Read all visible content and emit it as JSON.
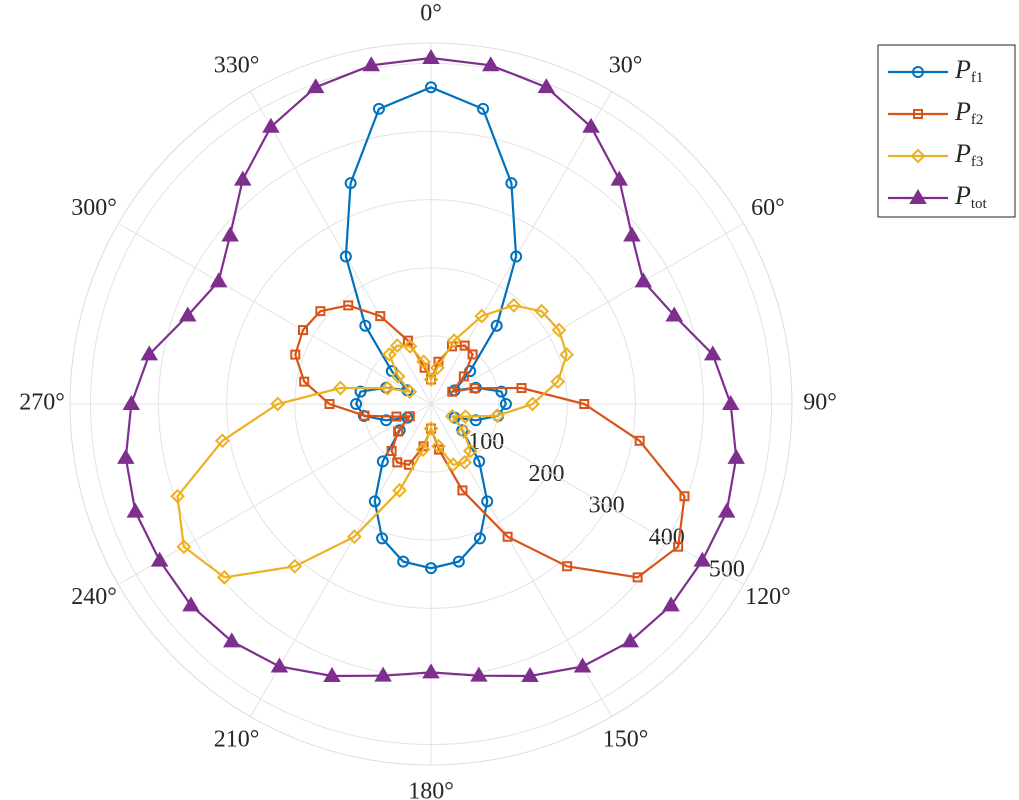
{
  "chart_data": {
    "type": "polar",
    "theta": [
      0,
      10,
      20,
      30,
      40,
      50,
      60,
      70,
      80,
      90,
      100,
      110,
      120,
      130,
      140,
      150,
      160,
      170,
      180,
      190,
      200,
      210,
      220,
      230,
      240,
      250,
      260,
      270,
      280,
      290,
      300,
      310,
      320,
      330,
      340,
      350
    ],
    "thetaticks": [
      {
        "value": 0,
        "label": "0°"
      },
      {
        "value": 30,
        "label": "30°"
      },
      {
        "value": 60,
        "label": "60°"
      },
      {
        "value": 90,
        "label": "90°"
      },
      {
        "value": 120,
        "label": "120°"
      },
      {
        "value": 150,
        "label": "150°"
      },
      {
        "value": 180,
        "label": "180°"
      },
      {
        "value": 210,
        "label": "210°"
      },
      {
        "value": 240,
        "label": "240°"
      },
      {
        "value": 270,
        "label": "270°"
      },
      {
        "value": 300,
        "label": "300°"
      },
      {
        "value": 330,
        "label": "330°"
      }
    ],
    "rlim": [
      0,
      530
    ],
    "rticks": [
      100,
      200,
      300,
      400,
      500
    ],
    "grid": true,
    "legend": "outside-upper-right",
    "series": [
      {
        "name": "Pf1",
        "color": "#0072BD",
        "marker": "circle",
        "values": [
          465,
          440,
          345,
          250,
          150,
          75,
          40,
          70,
          105,
          110,
          100,
          70,
          40,
          60,
          110,
          165,
          210,
          235,
          241,
          235,
          210,
          165,
          110,
          60,
          40,
          70,
          100,
          110,
          105,
          70,
          40,
          75,
          150,
          250,
          345,
          440
        ]
      },
      {
        "name": "Pf2",
        "color": "#D95319",
        "marker": "square",
        "values": [
          36,
          63,
          90,
          99,
          95,
          63,
          36,
          68,
          135,
          225,
          311,
          396,
          419,
          396,
          311,
          225,
          135,
          68,
          36,
          63,
          95,
          99,
          90,
          63,
          36,
          54,
          99,
          149,
          189,
          212,
          217,
          212,
          189,
          149,
          99,
          54
        ]
      },
      {
        "name": "Pf3",
        "color": "#EDB120",
        "marker": "diamond",
        "values": [
          36,
          54,
          99,
          149,
          189,
          212,
          217,
          212,
          189,
          149,
          99,
          54,
          36,
          63,
          90,
          99,
          95,
          63,
          36,
          68,
          135,
          225,
          311,
          396,
          419,
          396,
          311,
          225,
          135,
          68,
          36,
          63,
          95,
          99,
          90,
          63
        ]
      },
      {
        "name": "Ptot",
        "color": "#7E2F8E",
        "marker": "triangle",
        "values": [
          508,
          505,
          495,
          470,
          430,
          385,
          360,
          380,
          420,
          440,
          455,
          462,
          460,
          460,
          455,
          445,
          425,
          405,
          394,
          405,
          425,
          445,
          455,
          460,
          460,
          462,
          455,
          440,
          420,
          380,
          360,
          385,
          430,
          470,
          495,
          505
        ]
      }
    ]
  }
}
